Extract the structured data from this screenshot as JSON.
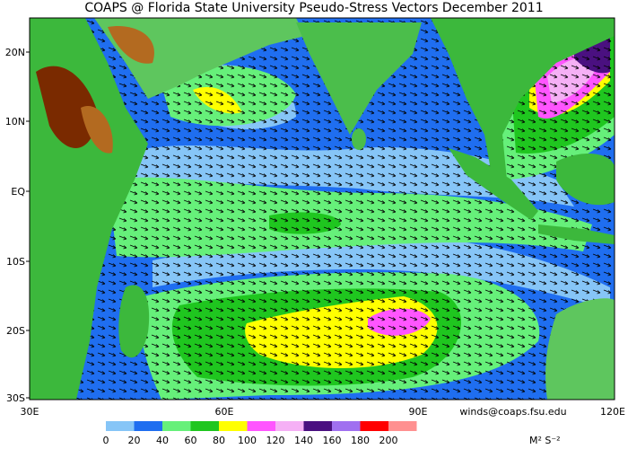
{
  "header": {
    "title": "COAPS @ Florida State University Pseudo-Stress Vectors December 2011"
  },
  "map": {
    "lat_labels": [
      "20N",
      "10N",
      "EQ",
      "10S",
      "20S",
      "30S"
    ],
    "lon_labels": [
      "30E",
      "60E",
      "90E",
      "120E"
    ]
  },
  "credit": "winds@coaps.fsu.edu",
  "colorbar": {
    "labels": [
      0,
      20,
      40,
      60,
      80,
      100,
      120,
      140,
      160,
      180,
      200
    ],
    "colors": [
      "#86c5f7",
      "#1f6ef0",
      "#66f07a",
      "#1fc61f",
      "#ffff00",
      "#ff55ff",
      "#f5b0f5",
      "#4a1080",
      "#a070f0",
      "#ff0000",
      "#ff9090"
    ],
    "unit": "M² S⁻²"
  }
}
